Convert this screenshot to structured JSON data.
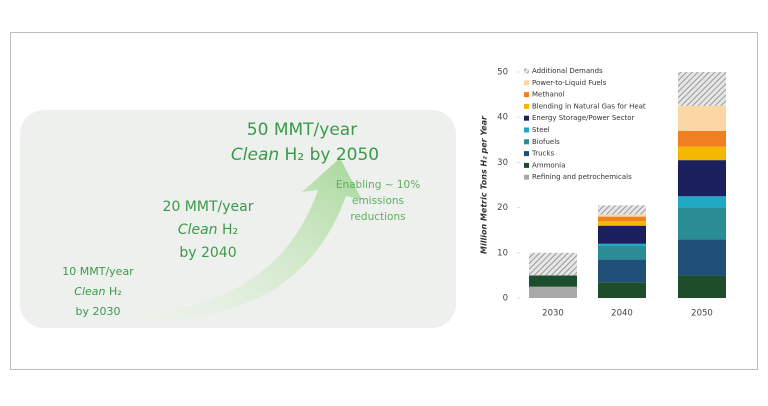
{
  "left": {
    "milestones": [
      {
        "amount": "50 MMT/year",
        "clean": "Clean",
        "h2": "H₂",
        "year": "by 2050"
      },
      {
        "amount": "20 MMT/year",
        "clean": "Clean",
        "h2": "H₂",
        "year": "by 2040"
      },
      {
        "amount": "10 MMT/year",
        "clean": "Clean",
        "h2": "H₂",
        "year": "by 2030"
      }
    ],
    "annotation": [
      "Enabling ~ 10%",
      "emissions",
      "reductions"
    ]
  },
  "chart_data": {
    "type": "stacked_bar",
    "y_label": "Million Metric Tons H₂ per Year",
    "categories": [
      "2030",
      "2040",
      "2050"
    ],
    "ylim": [
      0,
      50
    ],
    "yticks": [
      0,
      10,
      20,
      30,
      40,
      50
    ],
    "series": [
      {
        "name": "Refining and petrochemicals",
        "color": "#a9a9a9",
        "values": [
          2.5,
          0,
          0
        ]
      },
      {
        "name": "Ammonia",
        "color": "#1e4d2b",
        "values": [
          2.5,
          3.5,
          5
        ]
      },
      {
        "name": "Trucks",
        "color": "#1f4e79",
        "values": [
          0,
          5,
          8
        ]
      },
      {
        "name": "Biofuels",
        "color": "#2a8c94",
        "values": [
          0,
          3,
          7
        ]
      },
      {
        "name": "Steel",
        "color": "#1fa9c4",
        "values": [
          0,
          0.5,
          2.5
        ]
      },
      {
        "name": "Energy Storage/Power Sector",
        "color": "#1b1f5e",
        "values": [
          0,
          4,
          8
        ]
      },
      {
        "name": "Blending in Natural Gas for Heat",
        "color": "#f5b800",
        "values": [
          0,
          1,
          3
        ]
      },
      {
        "name": "Methanol",
        "color": "#f07f22",
        "values": [
          0,
          1,
          3.5
        ]
      },
      {
        "name": "Power-to-Liquid Fuels",
        "color": "#fbd7a6",
        "values": [
          0,
          0.5,
          5.5
        ]
      },
      {
        "name": "Additional Demands",
        "color": "#9a9a9a",
        "pattern": "hatch",
        "values": [
          5,
          2,
          7.5
        ]
      }
    ]
  }
}
